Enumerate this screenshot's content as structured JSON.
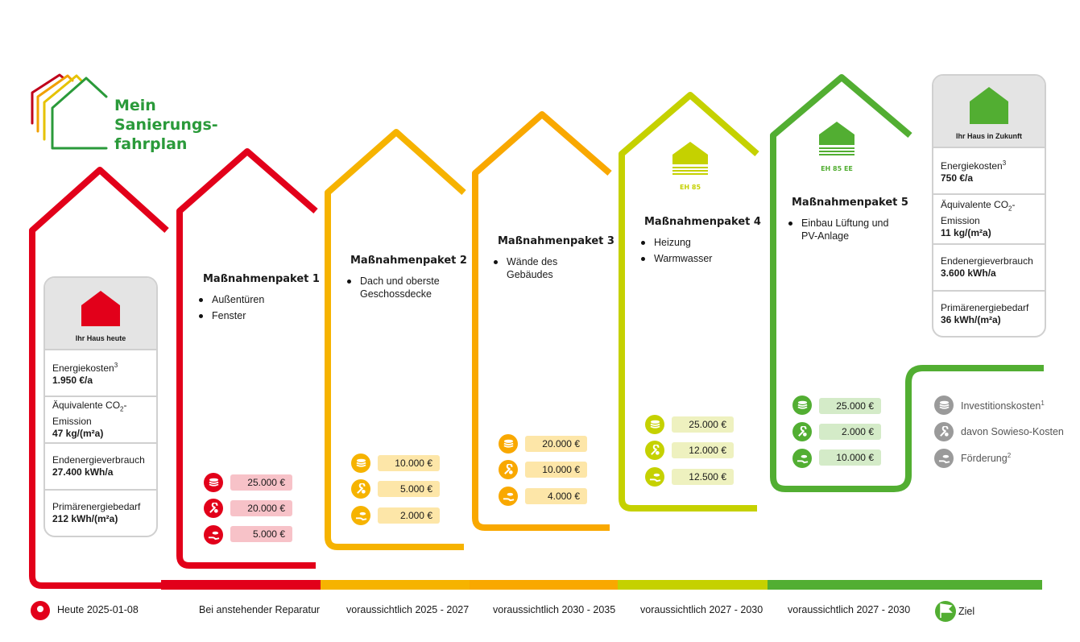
{
  "title": [
    "Mein",
    "Sanierungs-",
    "fahrplan"
  ],
  "colors": {
    "red": "#e2001a",
    "amber": "#f6b300",
    "orange": "#f9a800",
    "lime": "#c5d100",
    "green": "#52ae32"
  },
  "current": {
    "label": "Ihr Haus heute",
    "rows": [
      {
        "name": "Energiekosten",
        "sup": "3",
        "value": "1.950 €/a"
      },
      {
        "name": "Äquivalente CO",
        "sub": "2",
        "suffix": "-Emission",
        "value": "47 kg/(m²a)"
      },
      {
        "name": "Endenergieverbrauch",
        "value": "27.400 kWh/a"
      },
      {
        "name": "Primärenergiebedarf",
        "value": "212 kWh/(m²a)"
      }
    ]
  },
  "future": {
    "label": "Ihr Haus in Zukunft",
    "rows": [
      {
        "name": "Energiekosten",
        "sup": "3",
        "value": "750 €/a"
      },
      {
        "name": "Äquivalente CO",
        "sub": "2",
        "suffix": "-Emission",
        "value": "11 kg/(m²a)"
      },
      {
        "name": "Endenergieverbrauch",
        "value": "3.600 kWh/a"
      },
      {
        "name": "Primärenergiebedarf",
        "value": "36 kWh/(m²a)"
      }
    ]
  },
  "packages": [
    {
      "title": "Maßnahmenpaket 1",
      "items": [
        "Außentüren",
        "Fenster"
      ],
      "costs": [
        "25.000 €",
        "20.000 €",
        "5.000 €"
      ]
    },
    {
      "title": "Maßnahmenpaket 2",
      "items": [
        "Dach und oberste Geschossdecke"
      ],
      "costs": [
        "10.000 €",
        "5.000 €",
        "2.000 €"
      ]
    },
    {
      "title": "Maßnahmenpaket 3",
      "items": [
        "Wände des Gebäudes"
      ],
      "costs": [
        "20.000 €",
        "10.000 €",
        "4.000 €"
      ]
    },
    {
      "title": "Maßnahmenpaket 4",
      "items": [
        "Heizung",
        "Warmwasser"
      ],
      "costs": [
        "25.000 €",
        "12.000 €",
        "12.500 €"
      ],
      "badge": "EH 85"
    },
    {
      "title": "Maßnahmenpaket 5",
      "items": [
        "Einbau Lüftung und PV-Anlage"
      ],
      "costs": [
        "25.000 €",
        "2.000 €",
        "10.000 €"
      ],
      "badge": "EH 85 EE"
    }
  ],
  "legend": [
    {
      "label": "Investitionskosten",
      "sup": "1"
    },
    {
      "label": "davon Sowieso-Kosten"
    },
    {
      "label": "Förderung",
      "sup": "2"
    }
  ],
  "timeline": [
    "Heute 2025-01-08",
    "Bei anstehender Reparatur",
    "voraussichtlich 2025 - 2027",
    "voraussichtlich 2030 - 2035",
    "voraussichtlich 2027 - 2030",
    "voraussichtlich 2027 - 2030",
    "Ziel"
  ]
}
